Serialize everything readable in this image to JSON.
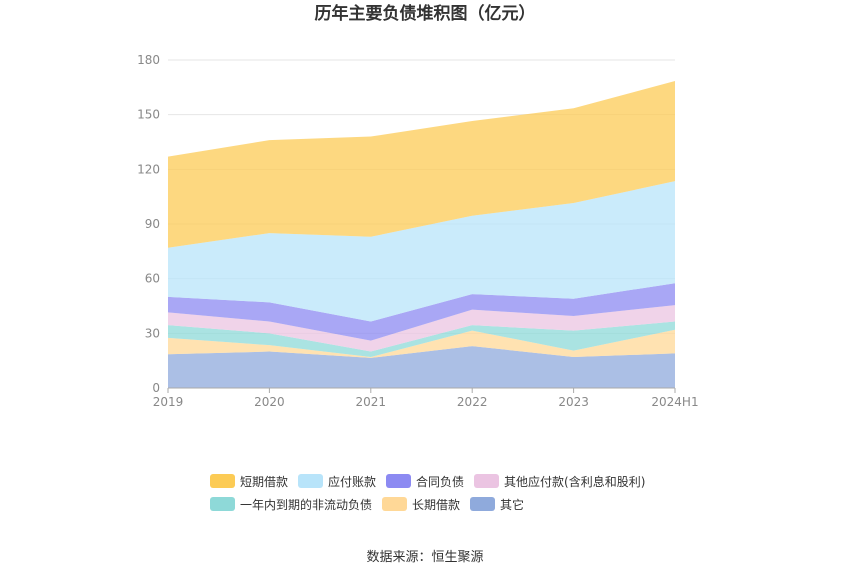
{
  "chart_data": {
    "type": "area",
    "stacked": true,
    "title": "历年主要负债堆积图（亿元）",
    "categories": [
      "2019",
      "2020",
      "2021",
      "2022",
      "2023",
      "2024H1"
    ],
    "ylim": [
      0,
      180
    ],
    "yticks": [
      "0",
      "30",
      "60",
      "90",
      "120",
      "150",
      "180"
    ],
    "grid": true,
    "legend_position": "bottom",
    "series": [
      {
        "name": "其它",
        "color": "#8FAADC",
        "values": [
          18.5,
          20,
          16.5,
          23,
          17,
          19
        ]
      },
      {
        "name": "长期借款",
        "color": "#FFD897",
        "values": [
          9,
          3.5,
          0.5,
          8.5,
          3.5,
          13
        ]
      },
      {
        "name": "一年内到期的非流动负债",
        "color": "#8ED9D8",
        "values": [
          7,
          6.5,
          3,
          3,
          11,
          4.5
        ]
      },
      {
        "name": "其他应付款(含利息和股利)",
        "color": "#EBC4E2",
        "values": [
          7,
          6.5,
          6,
          8.5,
          8,
          9
        ]
      },
      {
        "name": "合同负债",
        "color": "#8C8AF2",
        "values": [
          8.5,
          10.5,
          10.5,
          8.5,
          9.5,
          12
        ]
      },
      {
        "name": "应付账款",
        "color": "#B8E4FA",
        "values": [
          27,
          38,
          46.5,
          43,
          52.5,
          56
        ]
      },
      {
        "name": "短期借款",
        "color": "#FCCB55",
        "values": [
          50,
          51,
          55,
          52,
          52,
          55
        ]
      }
    ],
    "legend_order": [
      "短期借款",
      "应付账款",
      "合同负债",
      "其他应付款(含利息和股利)",
      "一年内到期的非流动负债",
      "长期借款",
      "其它"
    ]
  },
  "source_text": "数据来源：恒生聚源"
}
